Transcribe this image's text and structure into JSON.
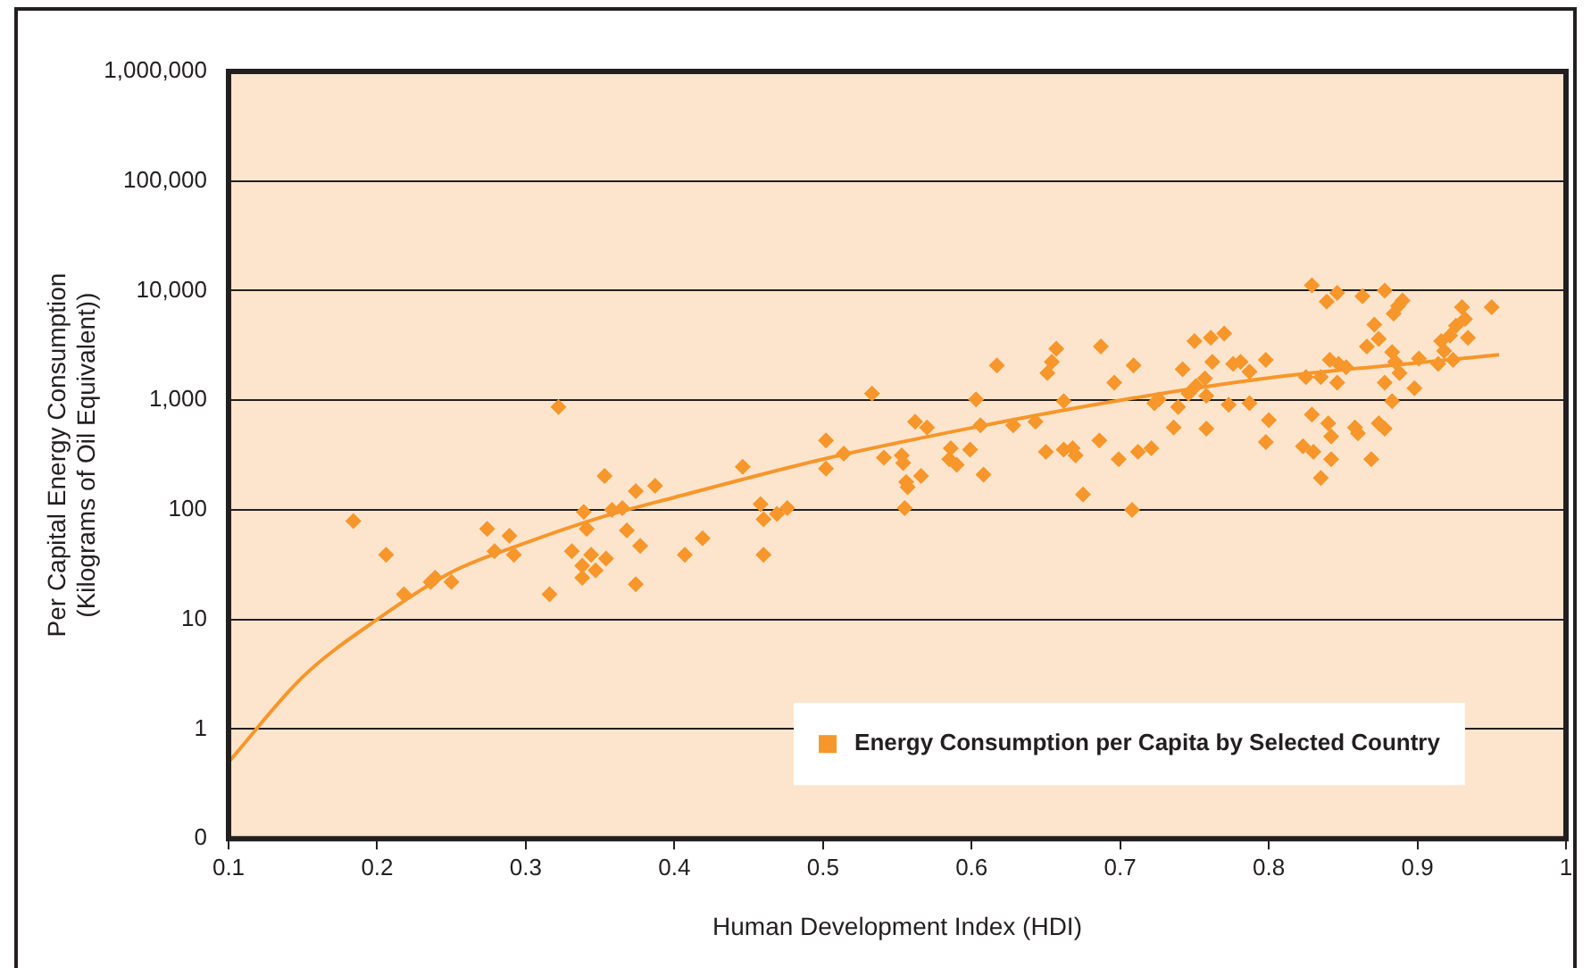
{
  "chart_data": {
    "type": "scatter",
    "xlabel": "Human Development Index (HDI)",
    "ylabel": "Per Capital Energy Consumption (Kilograms of Oil Equivalent))",
    "log": "y",
    "xlim": [
      0.1,
      1
    ],
    "xticks": [
      0.1,
      0.2,
      0.3,
      0.4,
      0.5,
      0.6,
      0.7,
      0.8,
      0.9,
      1
    ],
    "ylim": [
      0.1,
      1000000
    ],
    "yticks": [
      {
        "value": 0.1,
        "label": "0"
      },
      1,
      10,
      100,
      {
        "value": 1000,
        "label": "1,000"
      },
      {
        "value": 10000,
        "label": "10,000"
      },
      {
        "value": 100000,
        "label": "100,000"
      },
      {
        "value": 1000000,
        "label": "1,000,000"
      }
    ],
    "grid": "y",
    "legend": "bottom",
    "series": [
      {
        "name": "Energy Consumption per Capita by Selected Country",
        "color": "#f7962a",
        "marker": "diamond",
        "x": [
          0.322,
          0.184,
          0.206,
          0.218,
          0.236,
          0.239,
          0.25,
          0.274,
          0.289,
          0.279,
          0.292,
          0.316,
          0.353,
          0.339,
          0.341,
          0.331,
          0.344,
          0.338,
          0.347,
          0.354,
          0.338,
          0.358,
          0.365,
          0.374,
          0.387,
          0.368,
          0.377,
          0.374,
          0.407,
          0.419,
          0.446,
          0.458,
          0.46,
          0.469,
          0.476,
          0.46,
          0.502,
          0.502,
          0.514,
          0.533,
          0.541,
          0.553,
          0.554,
          0.556,
          0.557,
          0.566,
          0.555,
          0.562,
          0.57,
          0.586,
          0.585,
          0.59,
          0.599,
          0.608,
          0.603,
          0.606,
          0.617,
          0.628,
          0.643,
          0.65,
          0.651,
          0.654,
          0.657,
          0.662,
          0.662,
          0.668,
          0.67,
          0.675,
          0.687,
          0.696,
          0.709,
          0.686,
          0.699,
          0.712,
          0.721,
          0.708,
          0.723,
          0.726,
          0.739,
          0.736,
          0.742,
          0.75,
          0.761,
          0.77,
          0.757,
          0.751,
          0.746,
          0.758,
          0.762,
          0.776,
          0.781,
          0.787,
          0.798,
          0.758,
          0.773,
          0.787,
          0.8,
          0.798,
          0.825,
          0.835,
          0.846,
          0.841,
          0.847,
          0.852,
          0.829,
          0.839,
          0.846,
          0.863,
          0.878,
          0.884,
          0.887,
          0.89,
          0.871,
          0.874,
          0.866,
          0.878,
          0.883,
          0.885,
          0.888,
          0.898,
          0.901,
          0.914,
          0.916,
          0.922,
          0.926,
          0.93,
          0.932,
          0.934,
          0.924,
          0.918,
          0.95,
          0.883,
          0.829,
          0.823,
          0.83,
          0.84,
          0.842,
          0.842,
          0.835,
          0.858,
          0.86,
          0.869,
          0.874,
          0.878
        ],
        "values": [
          870,
          79,
          39,
          17,
          22,
          24,
          22,
          67,
          58,
          42,
          39,
          17,
          204,
          96,
          67,
          42,
          39,
          31,
          28,
          36,
          24,
          100,
          104,
          148,
          166,
          65,
          47,
          21,
          39,
          55,
          247,
          113,
          82,
          92,
          104,
          39,
          430,
          238,
          326,
          1150,
          300,
          314,
          268,
          180,
          161,
          204,
          104,
          636,
          565,
          365,
          290,
          258,
          354,
          210,
          1020,
          590,
          2080,
          590,
          636,
          339,
          1770,
          2240,
          2950,
          980,
          354,
          365,
          314,
          138,
          3090,
          1450,
          2080,
          430,
          290,
          339,
          365,
          100,
          940,
          1020,
          870,
          565,
          1920,
          3460,
          3720,
          4070,
          1580,
          1350,
          1150,
          1100,
          2240,
          2150,
          2240,
          1820,
          2340,
          550,
          910,
          940,
          660,
          415,
          1630,
          1630,
          1450,
          2340,
          2150,
          2000,
          11200,
          7940,
          9550,
          8910,
          10000,
          6170,
          7240,
          8130,
          4900,
          3630,
          3090,
          1450,
          2750,
          2240,
          1770,
          1290,
          2400,
          2150,
          3460,
          3890,
          4790,
          7080,
          5500,
          3720,
          2340,
          2820,
          7080,
          980,
          740,
          380,
          339,
          617,
          468,
          290,
          195,
          565,
          500,
          290,
          617,
          550
        ]
      },
      {
        "type": "line",
        "color": "#f7962a",
        "marker": "none",
        "x": [
          0.1,
          0.15,
          0.2,
          0.25,
          0.3,
          0.35,
          0.4,
          0.5,
          0.6,
          0.7,
          0.8,
          0.9,
          0.955
        ],
        "values": [
          0.5,
          3,
          10,
          27,
          50,
          85,
          130,
          290,
          560,
          1000,
          1600,
          2200,
          2600
        ]
      }
    ]
  }
}
